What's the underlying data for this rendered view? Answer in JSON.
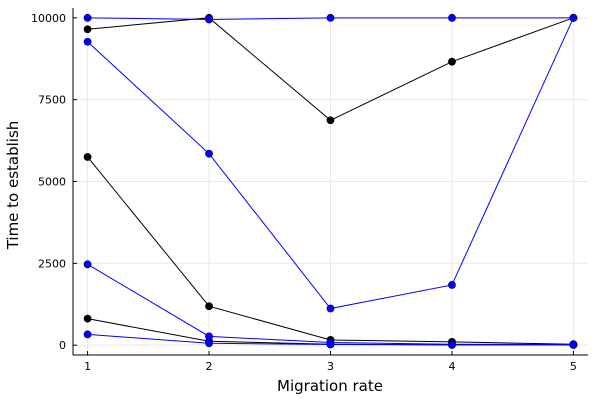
{
  "chart_data": {
    "type": "line",
    "title": "",
    "xlabel": "Migration rate",
    "ylabel": "Time to establish",
    "x": [
      1,
      2,
      3,
      4,
      5
    ],
    "xlim": [
      0.88,
      5.12
    ],
    "ylim": [
      -300,
      10300
    ],
    "xticks": [
      1,
      2,
      3,
      4,
      5
    ],
    "yticks": [
      0,
      2500,
      5000,
      7500,
      10000
    ],
    "grid": true,
    "legend": "none",
    "colors": {
      "blue": "#0000ff",
      "black": "#000000",
      "grid": "#e9e9e9"
    },
    "series": [
      {
        "color": "#000000",
        "values": [
          9650,
          10000,
          6870,
          8660,
          10000
        ]
      },
      {
        "color": "#000000",
        "values": [
          5750,
          1190,
          160,
          100,
          30
        ]
      },
      {
        "color": "#000000",
        "values": [
          810,
          120,
          30,
          10,
          10
        ]
      },
      {
        "color": "#0000ff",
        "values": [
          10000,
          9950,
          10000,
          10000,
          10000
        ]
      },
      {
        "color": "#0000ff",
        "values": [
          9270,
          5850,
          1120,
          1840,
          10000
        ]
      },
      {
        "color": "#0000ff",
        "values": [
          2470,
          270,
          80,
          30,
          20
        ]
      },
      {
        "color": "#0000ff",
        "values": [
          330,
          60,
          20,
          10,
          5
        ]
      }
    ]
  }
}
